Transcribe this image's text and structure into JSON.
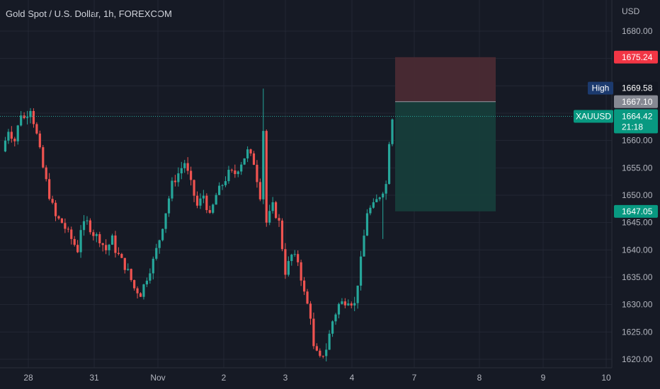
{
  "header": {
    "title": "Gold Spot / U.S. Dollar, 1h, FOREXCOM"
  },
  "colors": {
    "background": "#161a25",
    "grid": "#232734",
    "up": "#26a69a",
    "down": "#ef5350",
    "stop_zone": "#4a2a33",
    "target_zone": "#163d3a",
    "stop_tag": "#f23645",
    "target_tag": "#089981",
    "high_tag": "#1c3a6e",
    "entry_tag": "#868993"
  },
  "chart_data": {
    "type": "candlestick",
    "symbol": "XAUUSD",
    "timeframe": "1h",
    "currency_label": "USD",
    "ylim": [
      1618.5,
      1684.5
    ],
    "yticks": [
      "1680.00",
      "1675.00",
      "1670.00",
      "1665.00",
      "1660.00",
      "1655.00",
      "1650.00",
      "1645.00",
      "1640.00",
      "1635.00",
      "1630.00",
      "1625.00",
      "1620.00"
    ],
    "xticks": [
      "28",
      "31",
      "Nov",
      "2",
      "3",
      "4",
      "7",
      "8",
      "9",
      "10"
    ],
    "price_path": [
      [
        0,
        1658
      ],
      [
        2,
        1662
      ],
      [
        4,
        1660
      ],
      [
        6,
        1665
      ],
      [
        7,
        1664
      ],
      [
        9,
        1666
      ],
      [
        11,
        1661
      ],
      [
        13,
        1655
      ],
      [
        15,
        1650
      ],
      [
        17,
        1646
      ],
      [
        19,
        1645
      ],
      [
        21,
        1643
      ],
      [
        24,
        1640
      ],
      [
        25,
        1644
      ],
      [
        27,
        1645
      ],
      [
        29,
        1643
      ],
      [
        31,
        1642
      ],
      [
        33,
        1640
      ],
      [
        35,
        1642
      ],
      [
        36,
        1640
      ],
      [
        38,
        1638
      ],
      [
        40,
        1636
      ],
      [
        42,
        1633
      ],
      [
        44,
        1632
      ],
      [
        46,
        1635
      ],
      [
        48,
        1638
      ],
      [
        50,
        1642
      ],
      [
        52,
        1647
      ],
      [
        54,
        1652
      ],
      [
        56,
        1654
      ],
      [
        58,
        1656
      ],
      [
        60,
        1652
      ],
      [
        62,
        1648
      ],
      [
        64,
        1650
      ],
      [
        66,
        1646
      ],
      [
        68,
        1650
      ],
      [
        70,
        1652
      ],
      [
        72,
        1654
      ],
      [
        74,
        1654
      ],
      [
        76,
        1656
      ],
      [
        78,
        1658
      ],
      [
        80,
        1656
      ],
      [
        82,
        1650
      ],
      [
        83,
        1662
      ],
      [
        84,
        1645
      ],
      [
        86,
        1648
      ],
      [
        88,
        1645
      ],
      [
        90,
        1636
      ],
      [
        92,
        1639
      ],
      [
        94,
        1638
      ],
      [
        96,
        1632
      ],
      [
        98,
        1628
      ],
      [
        99,
        1622
      ],
      [
        101,
        1620
      ],
      [
        103,
        1622
      ],
      [
        105,
        1627
      ],
      [
        107,
        1630
      ],
      [
        110,
        1631
      ],
      [
        112,
        1630
      ],
      [
        114,
        1638
      ],
      [
        116,
        1647
      ],
      [
        118,
        1648
      ],
      [
        120,
        1650
      ],
      [
        122,
        1652
      ],
      [
        123,
        1660
      ],
      [
        124,
        1664.42
      ]
    ],
    "spikes": [
      {
        "index": 83,
        "high": 1669.5
      },
      {
        "index": 121,
        "low": 1642
      }
    ],
    "position_tool": {
      "type": "short",
      "entry": 1667.1,
      "stop": 1675.24,
      "target": 1647.05
    },
    "last_price": 1664.42,
    "countdown": "21:18",
    "labels": {
      "stop": "1675.24",
      "high_label": "High",
      "high_value": "1669.58",
      "entry": "1667.10",
      "symbol_tag": "XAUUSD",
      "last": "1664.42",
      "countdown": "21:18",
      "target": "1647.05"
    }
  }
}
